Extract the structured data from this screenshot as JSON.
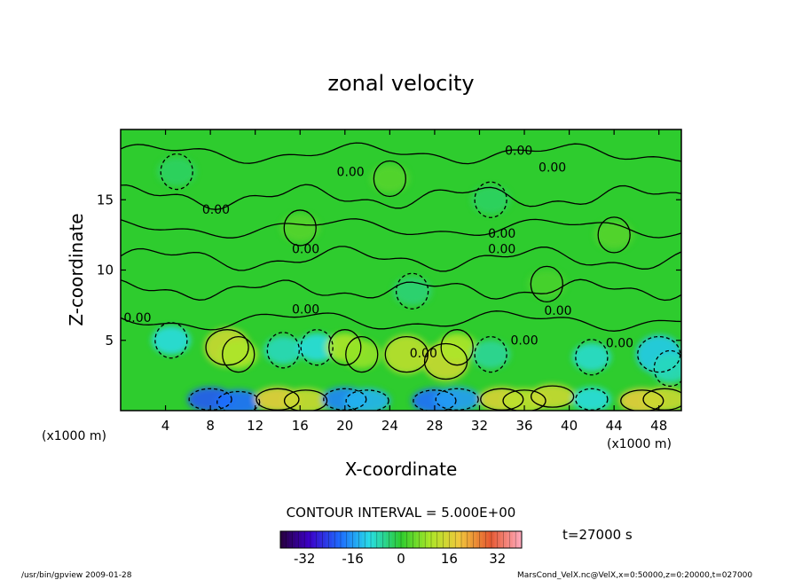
{
  "chart_data": {
    "type": "heatmap",
    "title": "zonal velocity",
    "xlabel": "X-coordinate",
    "ylabel": "Z-coordinate",
    "x_unit_left": "(x1000 m)",
    "x_unit_right": "(x1000 m)",
    "xlim": [
      0,
      50
    ],
    "ylim": [
      0,
      20
    ],
    "x_ticks": [
      4,
      8,
      12,
      16,
      20,
      24,
      28,
      32,
      36,
      40,
      44,
      48
    ],
    "y_ticks": [
      5,
      10,
      15
    ],
    "contour_interval_text": "CONTOUR INTERVAL = 5.000E+00",
    "time_text": "t=27000 s",
    "contour_label_text": "0.00",
    "contour_labels": [
      {
        "x": 8.5,
        "y": 14.0
      },
      {
        "x": 20.5,
        "y": 16.7
      },
      {
        "x": 35.5,
        "y": 18.2
      },
      {
        "x": 38.5,
        "y": 17.0
      },
      {
        "x": 16.5,
        "y": 11.2
      },
      {
        "x": 34.0,
        "y": 12.3
      },
      {
        "x": 34.0,
        "y": 11.2
      },
      {
        "x": 1.5,
        "y": 6.3
      },
      {
        "x": 16.5,
        "y": 6.9
      },
      {
        "x": 39.0,
        "y": 6.8
      },
      {
        "x": 36.0,
        "y": 4.7
      },
      {
        "x": 27.0,
        "y": 3.8
      },
      {
        "x": 44.5,
        "y": 4.5
      }
    ],
    "colorbar": {
      "ticks": [
        -32,
        -16,
        0,
        16,
        32
      ],
      "range": [
        -40,
        40
      ]
    },
    "features": [
      {
        "x": 8.0,
        "y": 0.8,
        "v": -22
      },
      {
        "x": 10.5,
        "y": 0.6,
        "v": -20
      },
      {
        "x": 14.0,
        "y": 0.8,
        "v": 18
      },
      {
        "x": 16.5,
        "y": 0.7,
        "v": 14
      },
      {
        "x": 20.0,
        "y": 0.8,
        "v": -18
      },
      {
        "x": 22.0,
        "y": 0.7,
        "v": -14
      },
      {
        "x": 28.0,
        "y": 0.7,
        "v": -20
      },
      {
        "x": 30.0,
        "y": 0.8,
        "v": -16
      },
      {
        "x": 34.0,
        "y": 0.8,
        "v": 16
      },
      {
        "x": 36.0,
        "y": 0.7,
        "v": 12
      },
      {
        "x": 38.5,
        "y": 1.0,
        "v": 14
      },
      {
        "x": 42.0,
        "y": 0.8,
        "v": -10
      },
      {
        "x": 46.5,
        "y": 0.7,
        "v": 18
      },
      {
        "x": 48.5,
        "y": 0.8,
        "v": 14
      },
      {
        "x": 4.5,
        "y": 5.0,
        "v": -10
      },
      {
        "x": 9.5,
        "y": 4.5,
        "v": 14
      },
      {
        "x": 10.5,
        "y": 4.0,
        "v": 10
      },
      {
        "x": 14.5,
        "y": 4.3,
        "v": -8
      },
      {
        "x": 17.5,
        "y": 4.5,
        "v": -10
      },
      {
        "x": 20.0,
        "y": 4.5,
        "v": 10
      },
      {
        "x": 21.5,
        "y": 4.0,
        "v": 8
      },
      {
        "x": 25.5,
        "y": 4.0,
        "v": 12
      },
      {
        "x": 29.0,
        "y": 3.5,
        "v": 14
      },
      {
        "x": 30.0,
        "y": 4.5,
        "v": 10
      },
      {
        "x": 33.0,
        "y": 4.0,
        "v": -6
      },
      {
        "x": 42.0,
        "y": 3.8,
        "v": -9
      },
      {
        "x": 48.0,
        "y": 4.0,
        "v": -12
      },
      {
        "x": 49.0,
        "y": 3.0,
        "v": -8
      },
      {
        "x": 26.0,
        "y": 8.5,
        "v": -4
      },
      {
        "x": 16.0,
        "y": 13.0,
        "v": 3
      },
      {
        "x": 5.0,
        "y": 17.0,
        "v": -3
      },
      {
        "x": 24.0,
        "y": 16.5,
        "v": 3
      },
      {
        "x": 33.0,
        "y": 15.0,
        "v": -3
      },
      {
        "x": 44.0,
        "y": 12.5,
        "v": 3
      },
      {
        "x": 38.0,
        "y": 9.0,
        "v": 2
      }
    ]
  },
  "footer": {
    "left": "/usr/bin/gpview   2009-01-28",
    "right": "MarsCond_VelX.nc@VelX,x=0:50000,z=0:20000,t=027000"
  },
  "colors": {
    "zero": "#2ecc2e",
    "frame": "#000000"
  }
}
